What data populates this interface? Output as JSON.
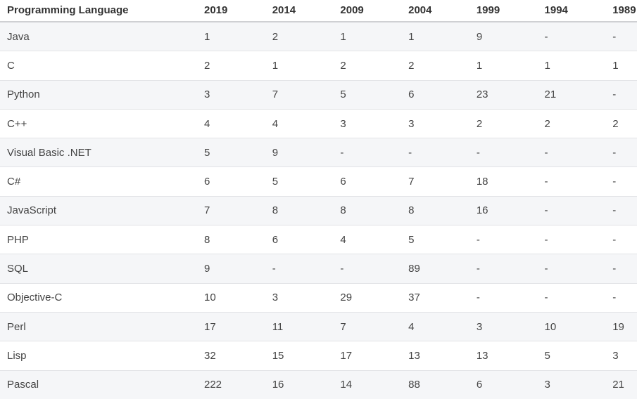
{
  "table": {
    "title_column": "Programming Language",
    "columns": [
      "Programming Language",
      "2019",
      "2014",
      "2009",
      "2004",
      "1999",
      "1994",
      "1989"
    ],
    "rows": [
      {
        "language": "Java",
        "values": [
          "1",
          "2",
          "1",
          "1",
          "9",
          "-",
          "-"
        ]
      },
      {
        "language": "C",
        "values": [
          "2",
          "1",
          "2",
          "2",
          "1",
          "1",
          "1"
        ]
      },
      {
        "language": "Python",
        "values": [
          "3",
          "7",
          "5",
          "6",
          "23",
          "21",
          "-"
        ]
      },
      {
        "language": "C++",
        "values": [
          "4",
          "4",
          "3",
          "3",
          "2",
          "2",
          "2"
        ]
      },
      {
        "language": "Visual Basic .NET",
        "values": [
          "5",
          "9",
          "-",
          "-",
          "-",
          "-",
          "-"
        ]
      },
      {
        "language": "C#",
        "values": [
          "6",
          "5",
          "6",
          "7",
          "18",
          "-",
          "-"
        ]
      },
      {
        "language": "JavaScript",
        "values": [
          "7",
          "8",
          "8",
          "8",
          "16",
          "-",
          "-"
        ]
      },
      {
        "language": "PHP",
        "values": [
          "8",
          "6",
          "4",
          "5",
          "-",
          "-",
          "-"
        ]
      },
      {
        "language": "SQL",
        "values": [
          "9",
          "-",
          "-",
          "89",
          "-",
          "-",
          "-"
        ]
      },
      {
        "language": "Objective-C",
        "values": [
          "10",
          "3",
          "29",
          "37",
          "-",
          "-",
          "-"
        ]
      },
      {
        "language": "Perl",
        "values": [
          "17",
          "11",
          "7",
          "4",
          "3",
          "10",
          "19"
        ]
      },
      {
        "language": "Lisp",
        "values": [
          "32",
          "15",
          "17",
          "13",
          "13",
          "5",
          "3"
        ]
      },
      {
        "language": "Pascal",
        "values": [
          "222",
          "16",
          "14",
          "88",
          "6",
          "3",
          "21"
        ]
      }
    ],
    "colors": {
      "header_text": "#333333",
      "cell_text": "#444444",
      "stripe_row_bg": "#f5f6f8",
      "row_border": "#e2e3e6",
      "header_border": "#cfd0d3",
      "page_bg": "#ffffff"
    }
  }
}
